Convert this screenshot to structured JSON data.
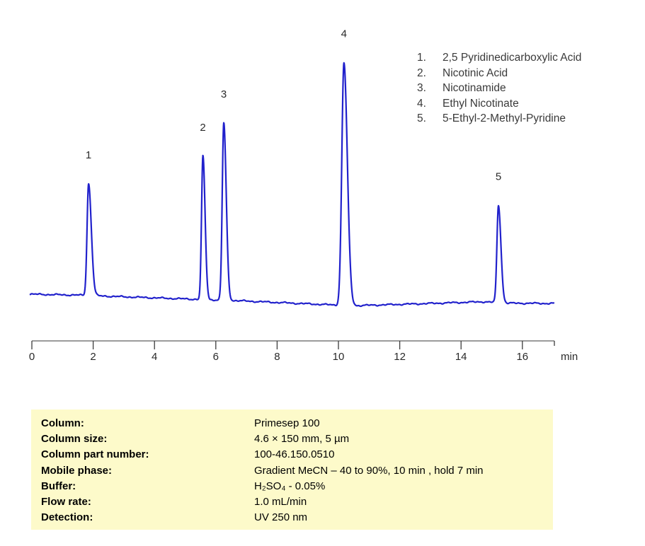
{
  "page": {
    "background": "#ffffff"
  },
  "legend": {
    "items": [
      {
        "num": "1.",
        "name": "2,5 Pyridinedicarboxylic Acid"
      },
      {
        "num": "2.",
        "name": "Nicotinic Acid"
      },
      {
        "num": "3.",
        "name": "Nicotinamide"
      },
      {
        "num": "4.",
        "name": "Ethyl Nicotinate"
      },
      {
        "num": "5.",
        "name": "5-Ethyl-2-Methyl-Pyridine"
      }
    ]
  },
  "chart_data": {
    "type": "line",
    "title": "",
    "xlabel": "min",
    "ylabel": "",
    "trace_color": "#2121cc",
    "axis_line_color": "#7a7a7a",
    "tick_color": "#3c3c3c",
    "label_color": "#2a2a2a",
    "x_axis": {
      "unit": "min",
      "ticks": [
        0,
        2,
        4,
        6,
        8,
        10,
        12,
        14,
        16
      ],
      "range": [
        0,
        17
      ]
    },
    "y_axis": {
      "visible": false,
      "unit": "relative absorbance (unlabeled)"
    },
    "peaks": [
      {
        "label": "1",
        "name": "2,5 Pyridinedicarboxylic Acid",
        "retention_min": 1.85,
        "rel_height": 0.46,
        "sigma_left_min": 0.05,
        "sigma_right_min": 0.09
      },
      {
        "label": "2",
        "name": "Nicotinic Acid",
        "retention_min": 5.58,
        "rel_height": 0.59,
        "sigma_left_min": 0.045,
        "sigma_right_min": 0.07
      },
      {
        "label": "3",
        "name": "Nicotinamide",
        "retention_min": 6.26,
        "rel_height": 0.73,
        "sigma_left_min": 0.05,
        "sigma_right_min": 0.08
      },
      {
        "label": "4",
        "name": "Ethyl Nicotinate",
        "retention_min": 10.18,
        "rel_height": 1.0,
        "sigma_left_min": 0.07,
        "sigma_right_min": 0.11
      },
      {
        "label": "5",
        "name": "5-Ethyl-2-Methyl-Pyridine",
        "retention_min": 15.22,
        "rel_height": 0.4,
        "sigma_left_min": 0.05,
        "sigma_right_min": 0.08
      }
    ],
    "baseline_drift": [
      [
        0,
        0
      ],
      [
        1.6,
        -0.004
      ],
      [
        2.2,
        -0.007
      ],
      [
        4,
        -0.015
      ],
      [
        5.4,
        -0.021
      ],
      [
        6.6,
        -0.026
      ],
      [
        8,
        -0.034
      ],
      [
        9.8,
        -0.044
      ],
      [
        10.6,
        -0.047
      ],
      [
        13,
        -0.038
      ],
      [
        14.7,
        -0.031
      ],
      [
        15.6,
        -0.037
      ],
      [
        17,
        -0.038
      ]
    ],
    "noise_amplitude": 0.0018
  },
  "info_box": {
    "background": "#fdfaca",
    "rows": [
      {
        "label": "Column:",
        "value": "Primesep  100"
      },
      {
        "label": "Column size:",
        "value": "4.6 × 150 mm, 5 µm"
      },
      {
        "label": "Column part number:",
        "value": "100-46.150.0510"
      },
      {
        "label": "Mobile phase:",
        "value": "Gradient  MeCN – 40 to 90%, 10 min , hold 7 min"
      },
      {
        "label": "Buffer:",
        "value": "H₂SO₄  - 0.05%"
      },
      {
        "label": "Flow rate:",
        "value": "1.0 mL/min"
      },
      {
        "label": "Detection:",
        "value": "UV 250  nm"
      }
    ]
  }
}
